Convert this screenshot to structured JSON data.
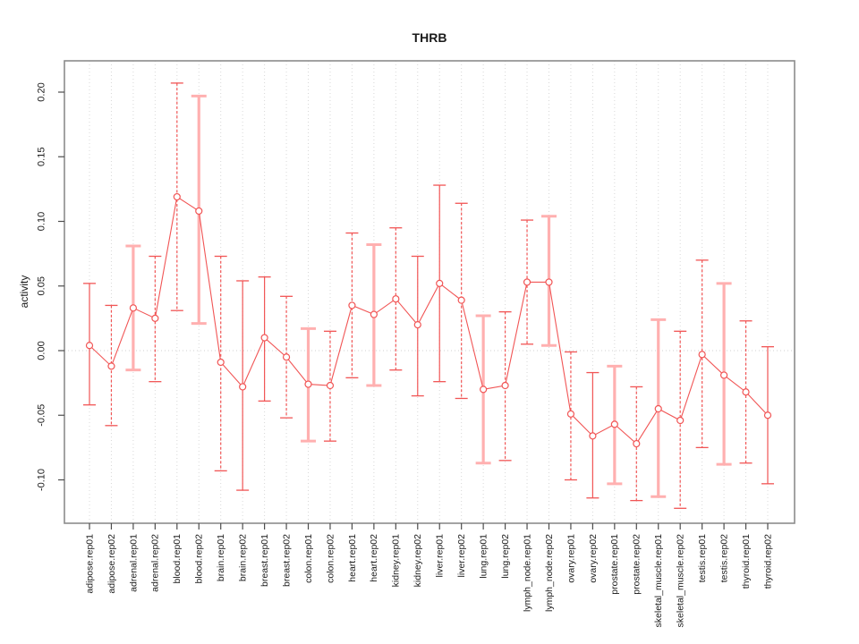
{
  "chart_data": {
    "type": "scatter",
    "title": "THRB",
    "xlabel": "",
    "ylabel": "activity",
    "ylim": [
      -0.13,
      0.215
    ],
    "yticks": [
      0.2,
      0.15,
      0.1,
      0.05,
      0.0,
      -0.05,
      -0.1
    ],
    "grid": "vertical dotted gridlines at every category; dotted horizontal line at y=0",
    "legend": "none",
    "point_marker": "open-circle",
    "colors": {
      "point_red": "#f15555",
      "error_pink": "#ffb0b0",
      "gridline": "#d8d8d8",
      "zero_line": "#d0d0d0",
      "box_border": "#8c8c8c",
      "tick_mark": "#4d4d4d",
      "text": "#1a1a1a",
      "background": "#ffffff"
    },
    "categories": [
      "adipose.rep01",
      "adipose.rep02",
      "adrenal.rep01",
      "adrenal.rep02",
      "blood.rep01",
      "blood.rep02",
      "brain.rep01",
      "brain.rep02",
      "breast.rep01",
      "breast.rep02",
      "colon.rep01",
      "colon.rep02",
      "heart.rep01",
      "heart.rep02",
      "kidney.rep01",
      "kidney.rep02",
      "liver.rep01",
      "liver.rep02",
      "lung.rep01",
      "lung.rep02",
      "lymph_node.rep01",
      "lymph_node.rep02",
      "ovary.rep01",
      "ovary.rep02",
      "prostate.rep01",
      "prostate.rep02",
      "skeletal_muscle.rep01",
      "skeletal_muscle.rep02",
      "testis.rep01",
      "testis.rep02",
      "thyroid.rep01",
      "thyroid.rep02"
    ],
    "series": [
      {
        "name": "activity",
        "values": [
          0.004,
          -0.012,
          0.033,
          0.025,
          0.119,
          0.108,
          -0.009,
          -0.028,
          0.01,
          -0.005,
          -0.026,
          -0.027,
          0.035,
          0.028,
          0.04,
          0.02,
          0.052,
          0.039,
          -0.03,
          -0.027,
          0.053,
          0.053,
          -0.049,
          -0.066,
          -0.057,
          -0.072,
          -0.045,
          -0.054,
          -0.003,
          -0.019,
          -0.032,
          -0.05
        ],
        "error_low": [
          -0.042,
          -0.058,
          -0.015,
          -0.024,
          0.031,
          0.021,
          -0.093,
          -0.108,
          -0.039,
          -0.052,
          -0.07,
          -0.07,
          -0.021,
          -0.027,
          -0.015,
          -0.035,
          -0.024,
          -0.037,
          -0.087,
          -0.085,
          0.005,
          0.004,
          -0.1,
          -0.114,
          -0.103,
          -0.116,
          -0.113,
          -0.122,
          -0.075,
          -0.088,
          -0.087,
          -0.103
        ],
        "error_high": [
          0.052,
          0.035,
          0.081,
          0.073,
          0.207,
          0.197,
          0.073,
          0.054,
          0.057,
          0.042,
          0.017,
          0.015,
          0.091,
          0.082,
          0.095,
          0.073,
          0.128,
          0.114,
          0.027,
          0.03,
          0.101,
          0.104,
          -0.001,
          -0.017,
          -0.012,
          -0.028,
          0.024,
          0.015,
          0.07,
          0.052,
          0.023,
          0.003
        ],
        "bar_styles": [
          "solid",
          "dashed",
          "pink",
          "dashed",
          "dashed",
          "pink",
          "dashed",
          "solid",
          "solid",
          "dashed",
          "pink",
          "dashed",
          "dashed",
          "pink",
          "dashed",
          "solid",
          "solid",
          "dashed",
          "pink",
          "dashed",
          "dashed",
          "pink",
          "dashed",
          "solid",
          "pink",
          "dashed",
          "pink",
          "dashed",
          "dashed",
          "pink",
          "dashed",
          "solid"
        ]
      }
    ]
  }
}
